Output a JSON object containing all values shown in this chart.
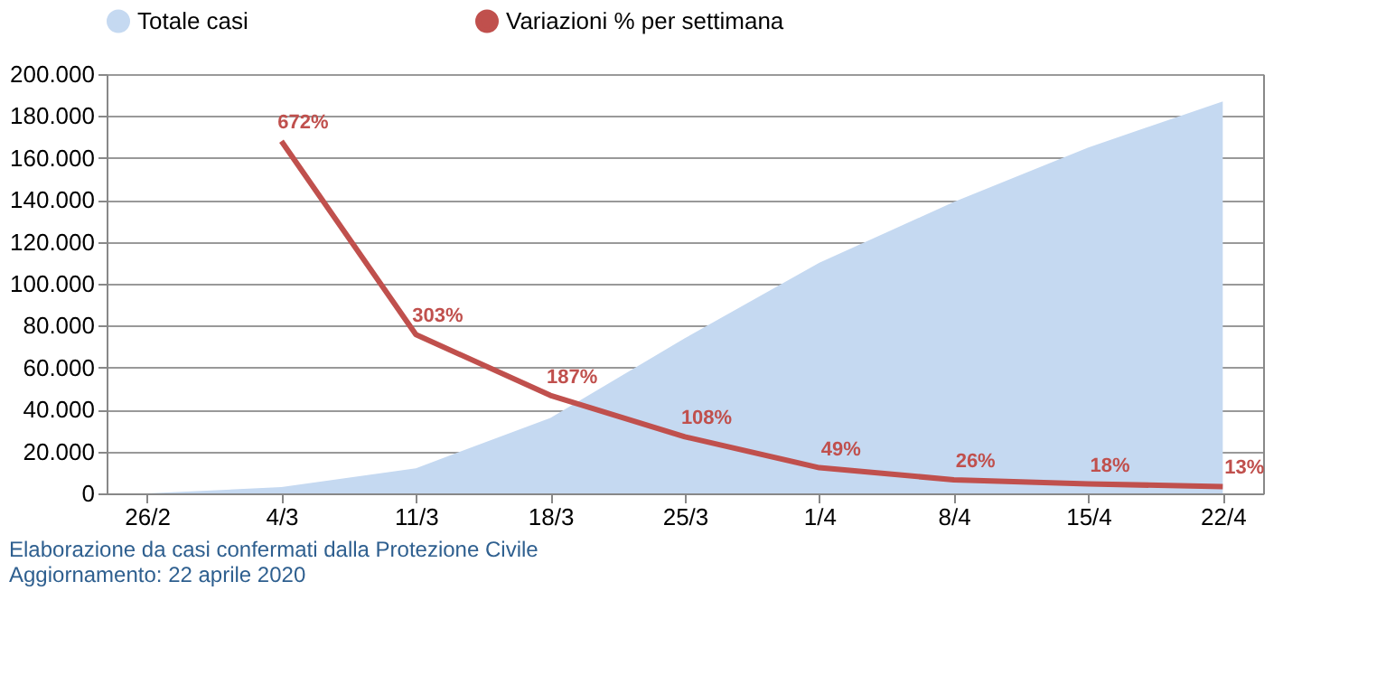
{
  "chart_data": {
    "type": "area",
    "categories": [
      "26/2",
      "4/3",
      "11/3",
      "18/3",
      "25/3",
      "1/4",
      "8/4",
      "15/4",
      "22/4"
    ],
    "series": [
      {
        "name": "Totale casi",
        "color": "#c5d9f1",
        "values": [
          0,
          3000,
          12000,
          36000,
          74000,
          110000,
          139000,
          165000,
          187000
        ]
      },
      {
        "name": "Variazioni % per settimana",
        "type": "line",
        "axis": "y2",
        "color": "#c0504d",
        "values": [
          null,
          672,
          303,
          187,
          108,
          49,
          26,
          18,
          13
        ],
        "value_labels": [
          null,
          "672%",
          "303%",
          "187%",
          "108%",
          "49%",
          "26%",
          "18%",
          "13%"
        ]
      }
    ],
    "ylim": [
      0,
      200000
    ],
    "yticks": [
      {
        "value": 0,
        "label": "0"
      },
      {
        "value": 20000,
        "label": "20.000"
      },
      {
        "value": 40000,
        "label": "40.000"
      },
      {
        "value": 60000,
        "label": "60.000"
      },
      {
        "value": 80000,
        "label": "80.000"
      },
      {
        "value": 100000,
        "label": "100.000"
      },
      {
        "value": 120000,
        "label": "120.000"
      },
      {
        "value": 140000,
        "label": "140.000"
      },
      {
        "value": 160000,
        "label": "160.000"
      },
      {
        "value": 180000,
        "label": "180.000"
      },
      {
        "value": 200000,
        "label": "200.000"
      }
    ],
    "y2lim": [
      0,
      800
    ],
    "grid": "y",
    "legend": "top",
    "marker": "none",
    "line_style": "solid",
    "annotations": [
      "Elaborazione da casi confermati dalla Protezione Civile",
      "Aggiornamento: 22 aprile 2020"
    ]
  }
}
